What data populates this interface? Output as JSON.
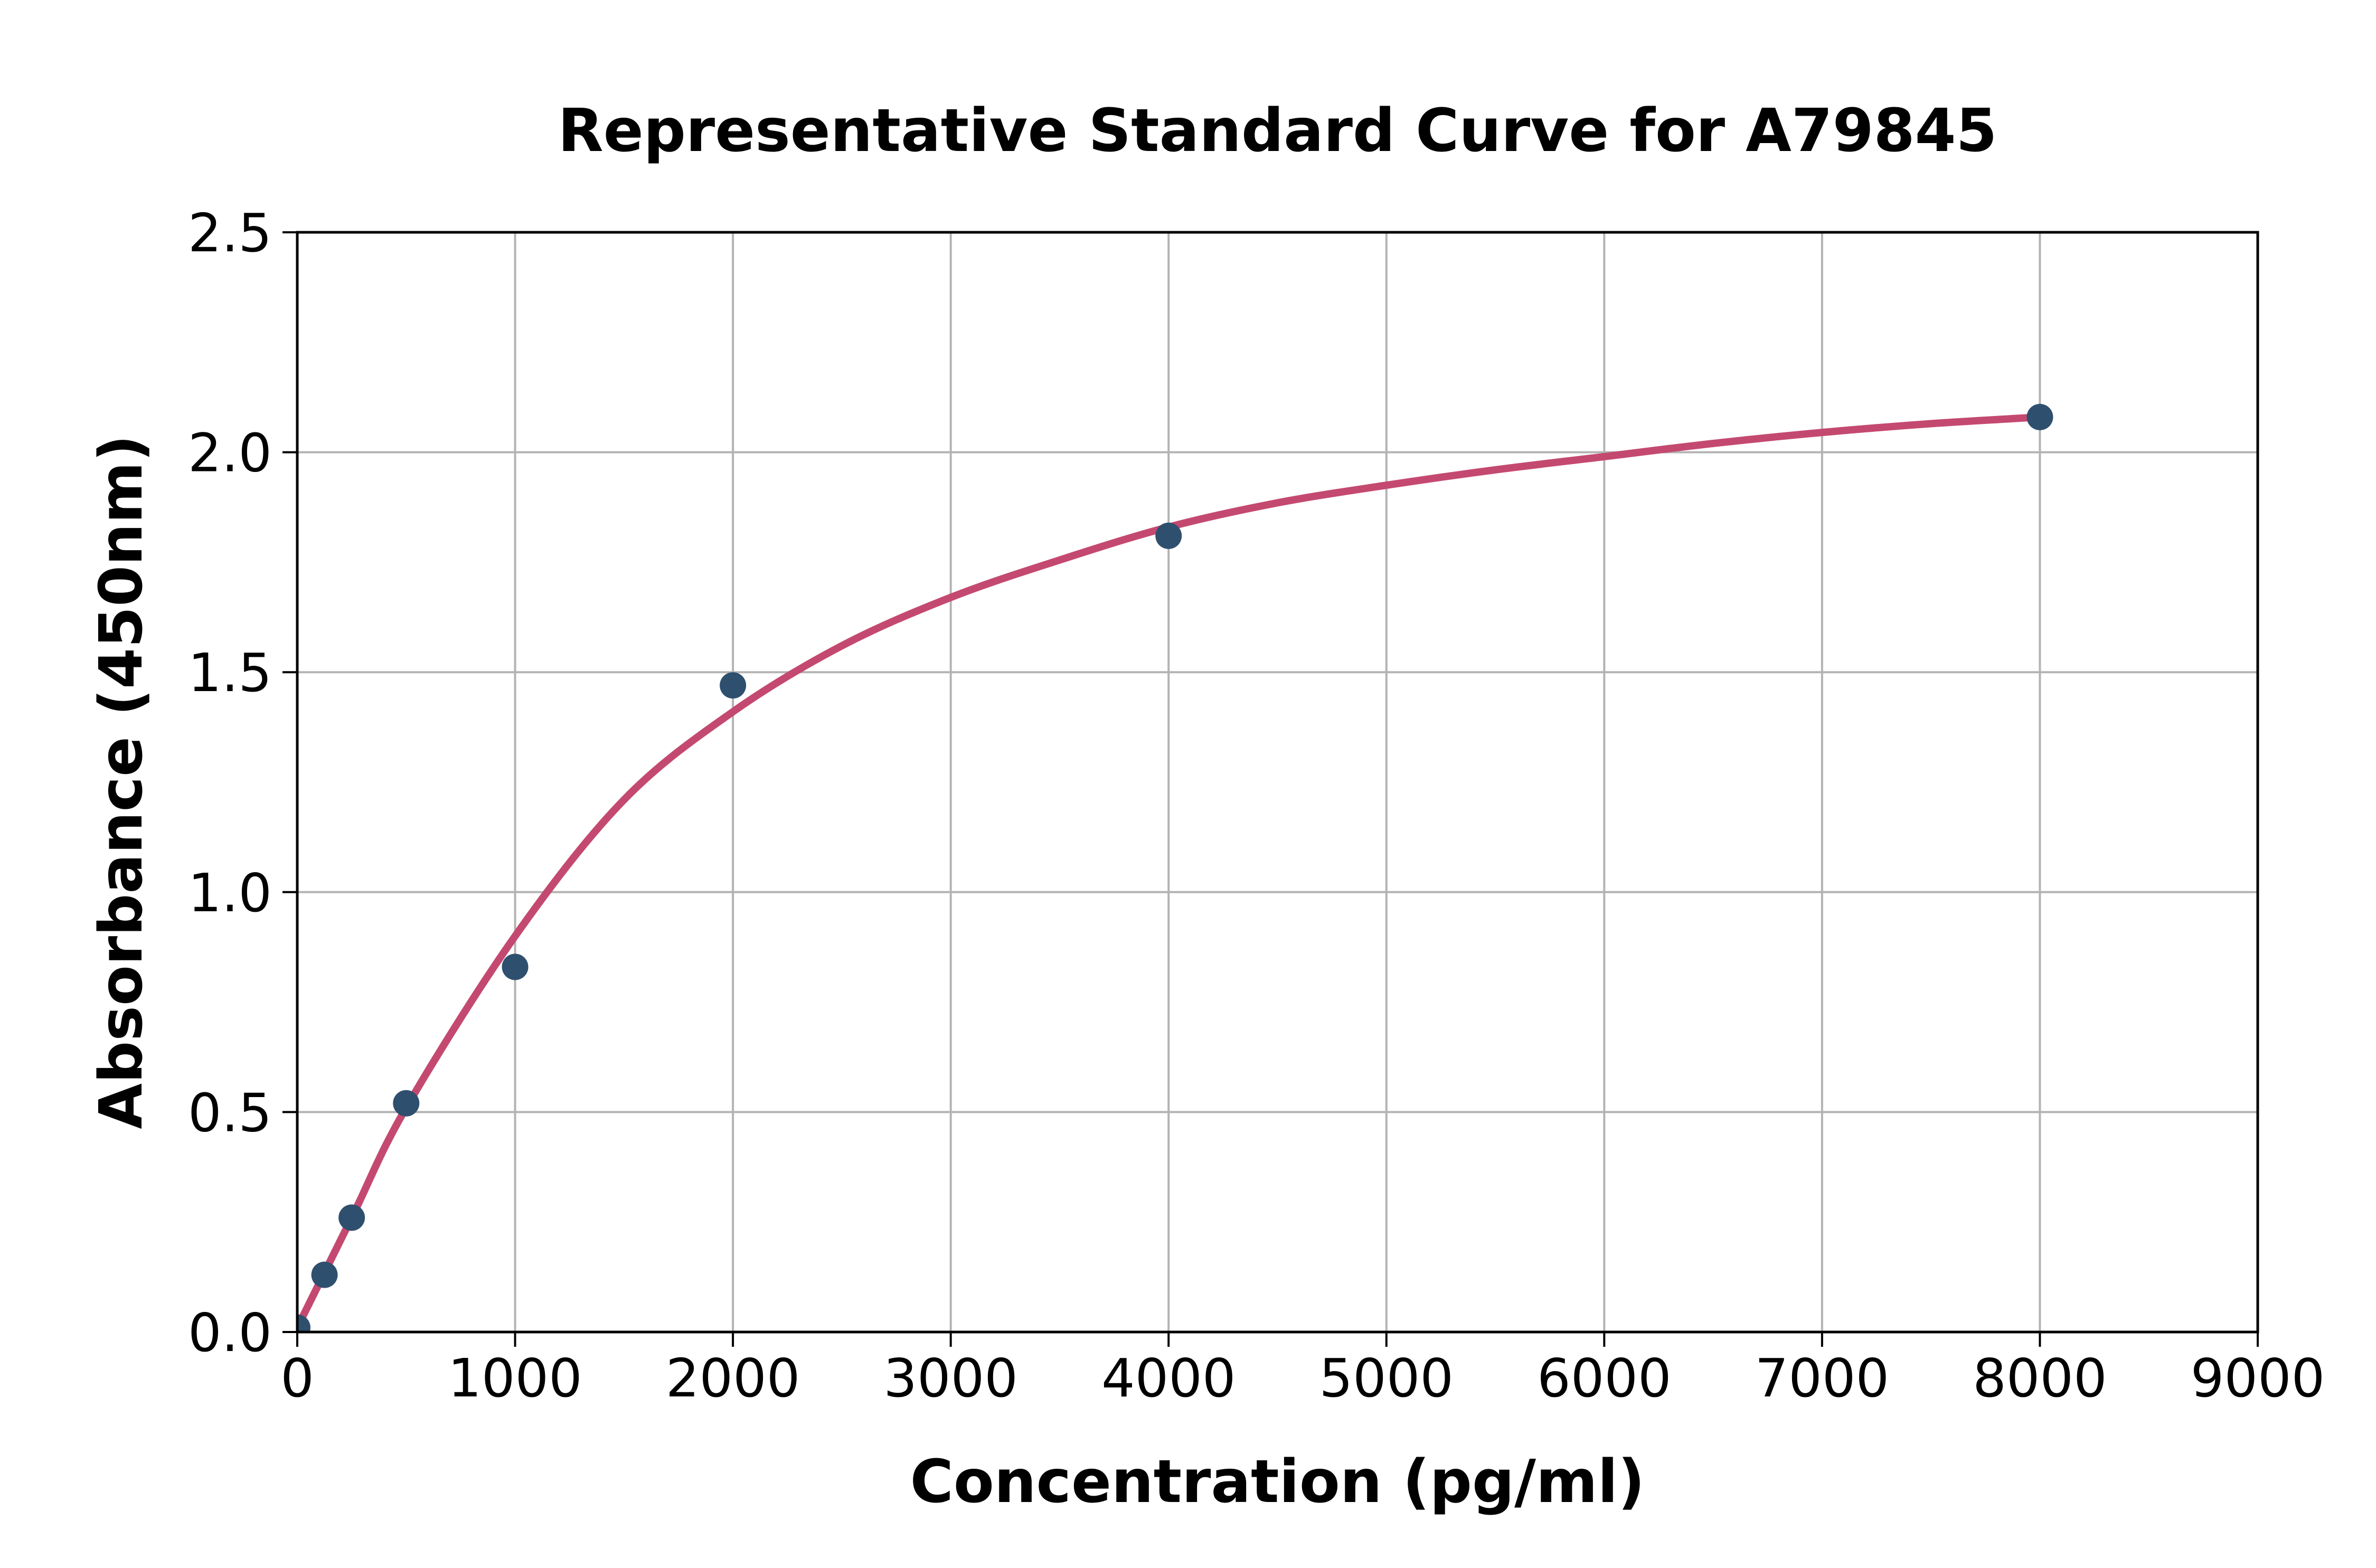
{
  "chart_data": {
    "type": "scatter",
    "title": "Representative Standard Curve for A79845",
    "xlabel": "Concentration (pg/ml)",
    "ylabel": "Absorbance (450nm)",
    "xlim": [
      0,
      9000
    ],
    "ylim": [
      0,
      2.5
    ],
    "x_ticks": [
      0,
      1000,
      2000,
      3000,
      4000,
      5000,
      6000,
      7000,
      8000,
      9000
    ],
    "x_tick_labels": [
      "0",
      "1000",
      "2000",
      "3000",
      "4000",
      "5000",
      "6000",
      "7000",
      "8000",
      "9000"
    ],
    "y_ticks": [
      0,
      0.5,
      1.0,
      1.5,
      2.0,
      2.5
    ],
    "y_tick_labels": [
      "0.0",
      "0.5",
      "1.0",
      "1.5",
      "2.0",
      "2.5"
    ],
    "grid": true,
    "legend": false,
    "series": [
      {
        "name": "standard-points",
        "type": "scatter",
        "marker": "circle",
        "color": "#2f4f6e",
        "points": [
          {
            "x": 0,
            "y": 0.01
          },
          {
            "x": 125,
            "y": 0.13
          },
          {
            "x": 250,
            "y": 0.26
          },
          {
            "x": 500,
            "y": 0.52
          },
          {
            "x": 1000,
            "y": 0.83
          },
          {
            "x": 2000,
            "y": 1.47
          },
          {
            "x": 4000,
            "y": 1.81
          },
          {
            "x": 8000,
            "y": 2.08
          }
        ]
      },
      {
        "name": "4pl-fit-curve",
        "type": "line",
        "color": "#c44970",
        "samples": [
          {
            "x": 0,
            "y": 0.01
          },
          {
            "x": 250,
            "y": 0.26
          },
          {
            "x": 500,
            "y": 0.51
          },
          {
            "x": 1000,
            "y": 0.9
          },
          {
            "x": 1500,
            "y": 1.21
          },
          {
            "x": 2000,
            "y": 1.41
          },
          {
            "x": 2500,
            "y": 1.56
          },
          {
            "x": 3000,
            "y": 1.67
          },
          {
            "x": 3500,
            "y": 1.755
          },
          {
            "x": 4000,
            "y": 1.83
          },
          {
            "x": 4500,
            "y": 1.885
          },
          {
            "x": 5000,
            "y": 1.925
          },
          {
            "x": 5500,
            "y": 1.96
          },
          {
            "x": 6000,
            "y": 1.99
          },
          {
            "x": 6500,
            "y": 2.02
          },
          {
            "x": 7000,
            "y": 2.045
          },
          {
            "x": 7500,
            "y": 2.065
          },
          {
            "x": 8000,
            "y": 2.08
          }
        ]
      }
    ],
    "style": {
      "background": "#ffffff",
      "grid_color": "#b3b3b3",
      "spine_color": "#000000",
      "tick_color": "#000000",
      "text_color": "#000000"
    }
  }
}
